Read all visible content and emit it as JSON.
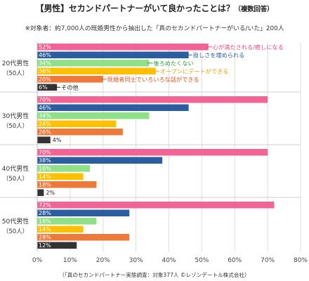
{
  "title": "【男性】セカンドパートナーがいて良かったことは？",
  "title_note": "（複数回答）",
  "subtitle": "※対象者：約7,000人の既婚男性から抽出した「真のセカンドパートナーがいる/いた」200人",
  "footer": "（「真のセカンドパートナー実態調査：対象377人 ©レゾンデートル株式会社）",
  "chart_data": {
    "type": "bar",
    "orientation": "horizontal",
    "categories": [
      "20代男性",
      "30代男性",
      "40代男性",
      "50代男性"
    ],
    "category_sublabels": [
      "（50人）",
      "（50人）",
      "（50人）",
      "（50人）"
    ],
    "series": [
      {
        "name": "心が満たされる/癒しになる",
        "color": "#f06496",
        "values": [
          52,
          70,
          70,
          72
        ]
      },
      {
        "name": "寂しさを埋められる",
        "color": "#2b5e9e",
        "values": [
          46,
          46,
          38,
          28
        ]
      },
      {
        "name": "後ろめたくない",
        "color": "#8fe088",
        "values": [
          34,
          34,
          16,
          18
        ]
      },
      {
        "name": "オープンにデートができる",
        "color": "#ffc000",
        "values": [
          36,
          24,
          14,
          14
        ]
      },
      {
        "name": "既婚者同士でいろいろな話ができる",
        "color": "#ed7a38",
        "values": [
          20,
          26,
          18,
          28
        ]
      },
      {
        "name": "その他",
        "color": "#333333",
        "values": [
          6,
          4,
          2,
          12
        ]
      }
    ],
    "label_colors": [
      "#e8457e",
      "#2b5e9e",
      "#2f9e38",
      "#f0a000",
      "#e0501c",
      "#222222"
    ],
    "value_suffix": "%",
    "xlim": [
      0,
      80
    ],
    "xticks": [
      0,
      10,
      20,
      30,
      40,
      50,
      60,
      70,
      80
    ],
    "tick_suffix": "%",
    "grid": true,
    "legend": "inline-annotations"
  }
}
